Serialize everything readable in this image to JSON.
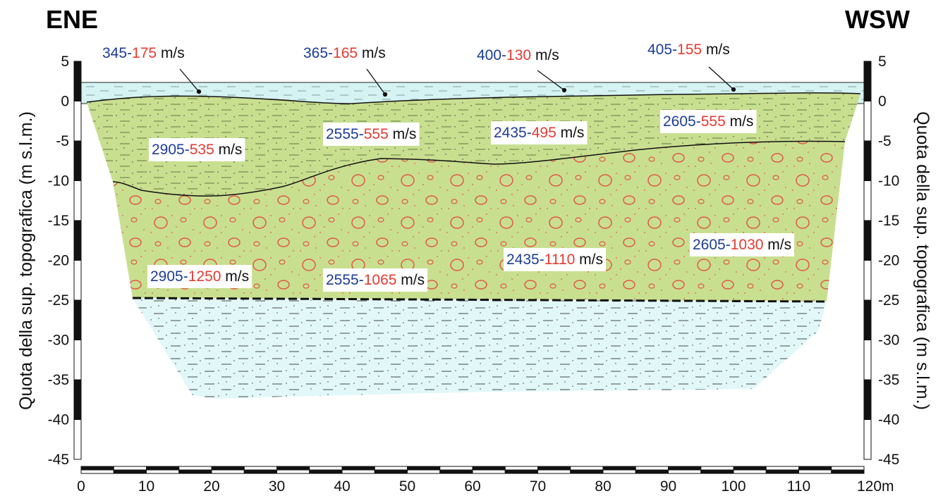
{
  "header": {
    "left": "ENE",
    "right": "WSW"
  },
  "y_axis": {
    "title": "Quota della sup. topografica (m s.l.m.)",
    "ticks": [
      "5",
      "0",
      "-5",
      "-10",
      "-15",
      "-20",
      "-25",
      "-30",
      "-35",
      "-40",
      "-45"
    ]
  },
  "x_axis": {
    "ticks": [
      "0",
      "10",
      "20",
      "30",
      "40",
      "50",
      "60",
      "70",
      "80",
      "90",
      "100",
      "110",
      "120m"
    ]
  },
  "velocity_labels": [
    {
      "p": "345",
      "sep": "-",
      "s": "175",
      "unit": "m/s"
    },
    {
      "p": "365",
      "sep": "-",
      "s": "165",
      "unit": "m/s"
    },
    {
      "p": "400",
      "sep": "-",
      "s": "130",
      "unit": "m/s"
    },
    {
      "p": "405",
      "sep": "-",
      "s": "155",
      "unit": "m/s"
    },
    {
      "p": "2905",
      "sep": "-",
      "s": "535",
      "unit": "m/s"
    },
    {
      "p": "2555",
      "sep": "-",
      "s": "555",
      "unit": "m/s"
    },
    {
      "p": "2435",
      "sep": "-",
      "s": "495",
      "unit": "m/s"
    },
    {
      "p": "2605",
      "sep": "-",
      "s": "555",
      "unit": "m/s"
    },
    {
      "p": "2905",
      "sep": "-",
      "s": "1250",
      "unit": "m/s"
    },
    {
      "p": "2555",
      "sep": "-",
      "s": "1065",
      "unit": "m/s"
    },
    {
      "p": "2435",
      "sep": "-",
      "s": "1110",
      "unit": "m/s"
    },
    {
      "p": "2605",
      "sep": "-",
      "s": "1030",
      "unit": "m/s"
    }
  ]
}
